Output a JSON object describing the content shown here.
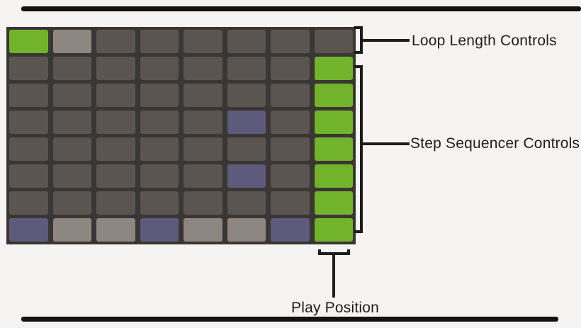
{
  "labels": {
    "loop_length": "Loop Length Controls",
    "step_sequencer": "Step Sequencer Controls",
    "play_position": "Play Position"
  },
  "colors": {
    "page_bg": "#f5f4f2",
    "grid_bg": "#3a3633",
    "annotation": "#1d1d1b",
    "rule_black": "#121212"
  },
  "grid": {
    "rows": 8,
    "cols": 8,
    "cell_colors": {
      "d": "#5b5551",
      "g": "#72b32c",
      "l": "#8d8681",
      "p": "#5e5a7c"
    },
    "cell_color_names": {
      "d": "dark-inactive-pad",
      "g": "green-active-pad",
      "l": "gray-pad",
      "p": "purple-pad"
    },
    "cells": [
      [
        "g",
        "l",
        "d",
        "d",
        "d",
        "d",
        "d",
        "d"
      ],
      [
        "d",
        "d",
        "d",
        "d",
        "d",
        "d",
        "d",
        "g"
      ],
      [
        "d",
        "d",
        "d",
        "d",
        "d",
        "d",
        "d",
        "g"
      ],
      [
        "d",
        "d",
        "d",
        "d",
        "d",
        "p",
        "d",
        "g"
      ],
      [
        "d",
        "d",
        "d",
        "d",
        "d",
        "d",
        "d",
        "g"
      ],
      [
        "d",
        "d",
        "d",
        "d",
        "d",
        "p",
        "d",
        "g"
      ],
      [
        "d",
        "d",
        "d",
        "d",
        "d",
        "d",
        "d",
        "g"
      ],
      [
        "p",
        "l",
        "l",
        "p",
        "l",
        "l",
        "p",
        "g"
      ]
    ]
  }
}
